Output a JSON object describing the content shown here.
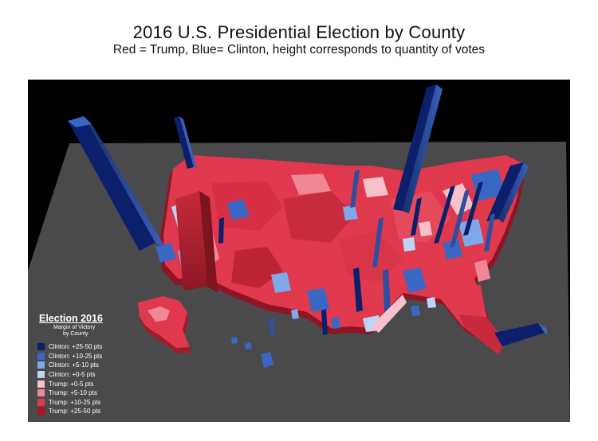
{
  "header": {
    "title": "2016 U.S. Presidential Election by County",
    "subtitle": "Red = Trump, Blue= Clinton, height corresponds to quantity of votes"
  },
  "legend": {
    "title": "Election 2016",
    "subtitle_line1": "Margin of Victory",
    "subtitle_line2": "by County",
    "items": [
      {
        "label": "Clinton: +25-50 pts",
        "color": "#0b1f6b"
      },
      {
        "label": "Clinton: +10-25 pts",
        "color": "#3a67c4"
      },
      {
        "label": "Clinton: +5-10 pts",
        "color": "#7fa8ea"
      },
      {
        "label": "Clinton: +0-5 pts",
        "color": "#bcd5f6"
      },
      {
        "label": "Trump: +0-5 pts",
        "color": "#f6c1cb"
      },
      {
        "label": "Trump: +5-10 pts",
        "color": "#f08797"
      },
      {
        "label": "Trump: +10-25 pts",
        "color": "#e0384c"
      },
      {
        "label": "Trump: +25-50 pts",
        "color": "#b30f1e"
      }
    ]
  },
  "colors": {
    "scene_background": "#000000",
    "floor": "#4a4a4d",
    "trump_base": "#e0384c",
    "clinton_base": "#2e4f9e"
  }
}
